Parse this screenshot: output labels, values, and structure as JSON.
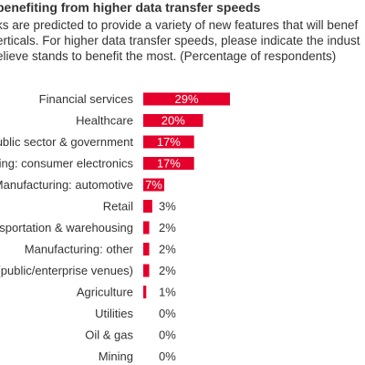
{
  "header": {
    "title": "benefiting from higher data transfer speeds",
    "subtitle_lines": [
      "ks are predicted to provide a variety of new features that will benef",
      "erticals. For higher data transfer speeds, please indicate the indust",
      "elieve stands to benefit the most. (Percentage of respondents)"
    ]
  },
  "chart_data": {
    "type": "bar",
    "orientation": "horizontal",
    "title": "benefiting from higher data transfer speeds",
    "categories": [
      "Financial services",
      "Healthcare",
      "Public sector & government",
      "ring: consumer electronics",
      "Manufacturing: automotive",
      "Retail",
      "nsportation & warehousing",
      "Manufacturing: other",
      "(public/enterprise venues)",
      "Agriculture",
      "Utilities",
      "Oil & gas",
      "Mining"
    ],
    "values": [
      29,
      20,
      17,
      17,
      7,
      3,
      2,
      2,
      2,
      1,
      0,
      0,
      0
    ],
    "labels": [
      "29%",
      "20%",
      "17%",
      "17%",
      "7%",
      "3%",
      "2%",
      "2%",
      "2%",
      "1%",
      "0%",
      "0%",
      "0%"
    ],
    "xlim": [
      0,
      29
    ],
    "grid": false,
    "bar_color": "#e4002b"
  }
}
